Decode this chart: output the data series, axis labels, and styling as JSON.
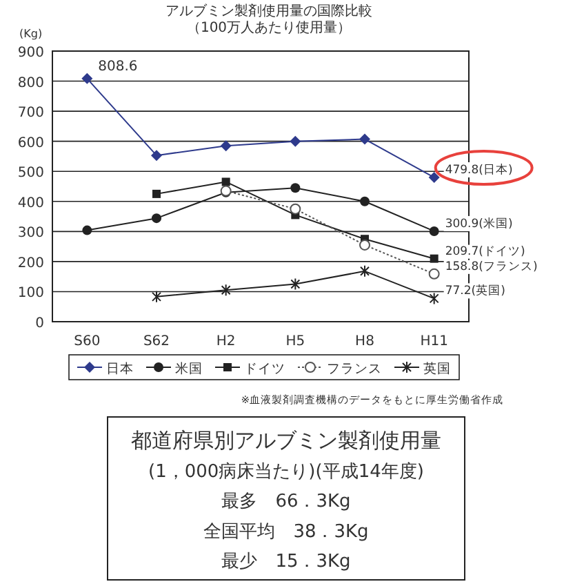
{
  "chart_data": [
    {
      "type": "line",
      "title": "アルブミン製剤使用量の国際比較",
      "subtitle": "（100万人あたり使用量）",
      "ylabel": "(Kg)",
      "categories": [
        "S60",
        "S62",
        "H2",
        "H5",
        "H8",
        "H11"
      ],
      "series": [
        {
          "name": "日本",
          "color": "#2e3a8c",
          "marker": "diamond",
          "line_style": "solid",
          "values": [
            808.6,
            553,
            585,
            600,
            607,
            479.8
          ]
        },
        {
          "name": "米国",
          "color": "#222222",
          "marker": "circle",
          "line_style": "solid",
          "values": [
            304,
            344,
            430,
            445,
            400,
            300.9
          ]
        },
        {
          "name": "ドイツ",
          "color": "#222222",
          "marker": "square",
          "line_style": "solid",
          "values": [
            null,
            425,
            465,
            355,
            275,
            209.7
          ]
        },
        {
          "name": "フランス",
          "color": "#555555",
          "marker": "open circle",
          "line_style": "dotted",
          "values": [
            null,
            null,
            435,
            375,
            255,
            158.8
          ]
        },
        {
          "name": "英国",
          "color": "#222222",
          "marker": "cross",
          "line_style": "solid",
          "values": [
            null,
            83,
            105,
            125,
            168,
            77.2
          ]
        }
      ],
      "ylim": [
        0,
        900
      ],
      "yticks": [
        0,
        100,
        200,
        300,
        400,
        500,
        600,
        700,
        800,
        900
      ],
      "grid": "y",
      "legend": "bottom",
      "annotations": [
        {
          "text": "808.6",
          "x": "S60",
          "y": 808.6
        },
        {
          "text": "479.8(日本)",
          "x": "H11",
          "y": 479.8
        },
        {
          "text": "300.9(米国)",
          "x": "H11",
          "y": 300.9
        },
        {
          "text": "209.7(ドイツ)",
          "x": "H11",
          "y": 209.7
        },
        {
          "text": "158.8(フランス)",
          "x": "H11",
          "y": 158.8
        },
        {
          "text": "77.2(英国)",
          "x": "H11",
          "y": 77.2
        },
        "※血液製剤調査機構のデータをもとに厚生労働省作成"
      ]
    },
    {
      "type": "other",
      "title": "都道府県別アルブミン製剤使用量",
      "subtitle": "(1，000病床当たり)(平成14年度)",
      "annotations": [
        "最多　66．3Kg",
        "全国平均　38．3Kg",
        "最少　15．3Kg"
      ]
    }
  ]
}
